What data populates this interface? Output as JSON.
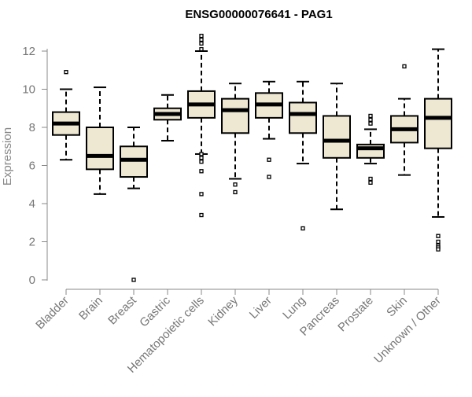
{
  "chart_data": {
    "type": "boxplot",
    "title": "ENSG00000076641 - PAG1",
    "xlabel": "",
    "ylabel": "Expression",
    "ylim": [
      0,
      12.5
    ],
    "yticks": [
      0,
      2,
      4,
      6,
      8,
      10,
      12
    ],
    "grid": false,
    "colors": {
      "box_fill": "#EEE8D2",
      "box_stroke": "#000000",
      "median": "#000000",
      "axis": "#888888",
      "title": "#000000"
    },
    "categories": [
      "Bladder",
      "Brain",
      "Breast",
      "Gastric",
      "Hematopoietic cells",
      "Kidney",
      "Liver",
      "Lung",
      "Pancreas",
      "Prostate",
      "Skin",
      "Unknown / Other"
    ],
    "boxes": [
      {
        "category": "Bladder",
        "whisker_low": 6.3,
        "q1": 7.6,
        "median": 8.2,
        "q3": 8.8,
        "whisker_high": 10.0,
        "outliers": [
          10.9
        ]
      },
      {
        "category": "Brain",
        "whisker_low": 4.5,
        "q1": 5.8,
        "median": 6.5,
        "q3": 8.0,
        "whisker_high": 10.1,
        "outliers": []
      },
      {
        "category": "Breast",
        "whisker_low": 4.8,
        "q1": 5.4,
        "median": 6.3,
        "q3": 7.0,
        "whisker_high": 8.0,
        "outliers": [
          0.0
        ]
      },
      {
        "category": "Gastric",
        "whisker_low": 7.3,
        "q1": 8.4,
        "median": 8.7,
        "q3": 9.0,
        "whisker_high": 9.7,
        "outliers": []
      },
      {
        "category": "Hematopoietic cells",
        "whisker_low": 6.6,
        "q1": 8.5,
        "median": 9.2,
        "q3": 9.9,
        "whisker_high": 12.0,
        "outliers": [
          12.8,
          12.6,
          12.4,
          12.1,
          6.6,
          6.4,
          6.2,
          5.7,
          4.5,
          3.4
        ]
      },
      {
        "category": "Kidney",
        "whisker_low": 5.3,
        "q1": 7.7,
        "median": 8.9,
        "q3": 9.5,
        "whisker_high": 10.3,
        "outliers": [
          5.0,
          4.6
        ]
      },
      {
        "category": "Liver",
        "whisker_low": 7.4,
        "q1": 8.5,
        "median": 9.2,
        "q3": 9.8,
        "whisker_high": 10.4,
        "outliers": [
          6.3,
          5.4
        ]
      },
      {
        "category": "Lung",
        "whisker_low": 6.1,
        "q1": 7.7,
        "median": 8.7,
        "q3": 9.3,
        "whisker_high": 10.4,
        "outliers": [
          2.7
        ]
      },
      {
        "category": "Pancreas",
        "whisker_low": 3.7,
        "q1": 6.4,
        "median": 7.3,
        "q3": 8.6,
        "whisker_high": 10.3,
        "outliers": []
      },
      {
        "category": "Prostate",
        "whisker_low": 6.1,
        "q1": 6.4,
        "median": 6.9,
        "q3": 7.1,
        "whisker_high": 7.9,
        "outliers": [
          8.6,
          8.4,
          8.2,
          5.3,
          5.1
        ]
      },
      {
        "category": "Skin",
        "whisker_low": 5.5,
        "q1": 7.2,
        "median": 7.9,
        "q3": 8.6,
        "whisker_high": 9.5,
        "outliers": [
          11.2
        ]
      },
      {
        "category": "Unknown / Other",
        "whisker_low": 3.3,
        "q1": 6.9,
        "median": 8.5,
        "q3": 9.5,
        "whisker_high": 12.1,
        "outliers": [
          2.3,
          2.0,
          1.8,
          1.7,
          1.6
        ]
      }
    ]
  }
}
